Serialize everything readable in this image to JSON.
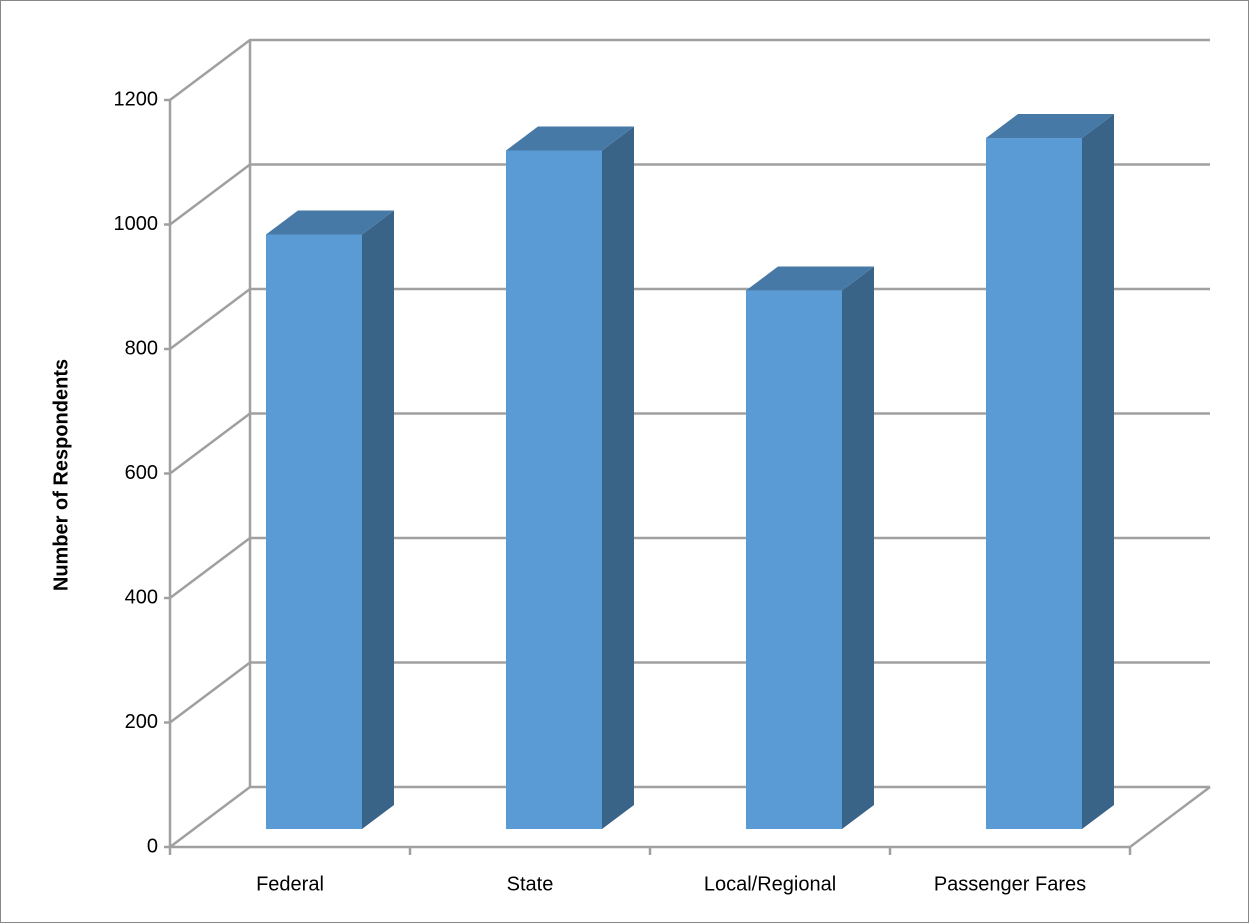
{
  "chart_data": {
    "type": "bar3d",
    "y_label": "Number of Respondents",
    "categories": [
      "Federal",
      "State",
      "Local/Regional",
      "Passenger Fares"
    ],
    "values": [
      955,
      1090,
      865,
      1110
    ],
    "color": "#5b9bd5",
    "ylim": [
      0,
      1200
    ],
    "yticks": [
      0,
      200,
      400,
      600,
      800,
      1000,
      1200
    ],
    "grid": true
  }
}
